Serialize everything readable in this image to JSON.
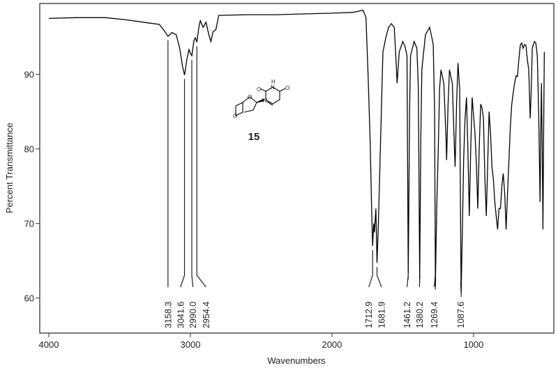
{
  "chart_data": {
    "type": "line",
    "title": "",
    "xlabel": "Wavenumbers",
    "ylabel": "Percent Transmittance",
    "xlim": [
      4064,
      433
    ],
    "ylim": [
      55.3,
      99.5
    ],
    "x_reversed": true,
    "grid": false,
    "xticks": [
      4000,
      3000,
      2000,
      1000
    ],
    "yticks": [
      60,
      70,
      80,
      90
    ],
    "line_color": "#000000",
    "series": [
      {
        "points": [
          [
            4000,
            97.5
          ],
          [
            3800,
            97.6
          ],
          [
            3600,
            97.6
          ],
          [
            3450,
            97.3
          ],
          [
            3300,
            96.9
          ],
          [
            3220,
            96.7
          ],
          [
            3190,
            96.0
          ],
          [
            3158,
            95.1
          ],
          [
            3130,
            95.6
          ],
          [
            3100,
            95.3
          ],
          [
            3075,
            93.5
          ],
          [
            3055,
            91.0
          ],
          [
            3041,
            89.9
          ],
          [
            3025,
            92.0
          ],
          [
            3010,
            93.3
          ],
          [
            3000,
            92.8
          ],
          [
            2990,
            92.5
          ],
          [
            2975,
            94.5
          ],
          [
            2965,
            94.9
          ],
          [
            2954,
            94.3
          ],
          [
            2940,
            96.3
          ],
          [
            2930,
            97.2
          ],
          [
            2910,
            96.3
          ],
          [
            2890,
            97.0
          ],
          [
            2870,
            95.3
          ],
          [
            2855,
            94.4
          ],
          [
            2840,
            95.7
          ],
          [
            2820,
            96.0
          ],
          [
            2800,
            97.9
          ],
          [
            2600,
            98.0
          ],
          [
            2400,
            98.0
          ],
          [
            2200,
            98.1
          ],
          [
            2000,
            98.2
          ],
          [
            1850,
            98.3
          ],
          [
            1780,
            98.6
          ],
          [
            1760,
            97.6
          ],
          [
            1745,
            90.0
          ],
          [
            1730,
            81.0
          ],
          [
            1720,
            72.0
          ],
          [
            1712.9,
            67.0
          ],
          [
            1705,
            70.0
          ],
          [
            1700,
            68.8
          ],
          [
            1690,
            72.0
          ],
          [
            1681.9,
            64.7
          ],
          [
            1672,
            70.0
          ],
          [
            1660,
            78.9
          ],
          [
            1650,
            86.0
          ],
          [
            1640,
            93.0
          ],
          [
            1620,
            94.9
          ],
          [
            1600,
            96.3
          ],
          [
            1580,
            96.8
          ],
          [
            1560,
            96.3
          ],
          [
            1548,
            92.0
          ],
          [
            1540,
            88.8
          ],
          [
            1525,
            93.0
          ],
          [
            1500,
            94.4
          ],
          [
            1485,
            93.8
          ],
          [
            1470,
            92.5
          ],
          [
            1461.2,
            63.1
          ],
          [
            1452,
            85.0
          ],
          [
            1445,
            92.5
          ],
          [
            1420,
            94.4
          ],
          [
            1400,
            93.5
          ],
          [
            1390,
            88.0
          ],
          [
            1380.2,
            62.6
          ],
          [
            1372,
            82.0
          ],
          [
            1365,
            90.6
          ],
          [
            1340,
            95.3
          ],
          [
            1310,
            96.3
          ],
          [
            1295,
            95.0
          ],
          [
            1285,
            94.0
          ],
          [
            1275,
            85.0
          ],
          [
            1269.4,
            61.7
          ],
          [
            1260,
            72.0
          ],
          [
            1250,
            79.4
          ],
          [
            1240,
            88.0
          ],
          [
            1230,
            90.6
          ],
          [
            1210,
            88.8
          ],
          [
            1195,
            82.0
          ],
          [
            1190,
            78.5
          ],
          [
            1180,
            86.0
          ],
          [
            1170,
            90.6
          ],
          [
            1150,
            88.8
          ],
          [
            1135,
            80.0
          ],
          [
            1130,
            77.6
          ],
          [
            1120,
            86.0
          ],
          [
            1110,
            91.5
          ],
          [
            1098,
            88.0
          ],
          [
            1087.6,
            60.7
          ],
          [
            1078,
            70.0
          ],
          [
            1070,
            78.5
          ],
          [
            1060,
            84.0
          ],
          [
            1050,
            86.9
          ],
          [
            1040,
            80.0
          ],
          [
            1030,
            71.0
          ],
          [
            1020,
            80.0
          ],
          [
            1010,
            86.9
          ],
          [
            1000,
            84.5
          ],
          [
            990,
            82.2
          ],
          [
            980,
            78.0
          ],
          [
            970,
            72.0
          ],
          [
            960,
            80.0
          ],
          [
            950,
            86.0
          ],
          [
            940,
            85.5
          ],
          [
            930,
            84.1
          ],
          [
            920,
            76.0
          ],
          [
            910,
            71.0
          ],
          [
            900,
            78.0
          ],
          [
            890,
            85.0
          ],
          [
            880,
            82.0
          ],
          [
            870,
            77.6
          ],
          [
            860,
            76.0
          ],
          [
            850,
            72.9
          ],
          [
            840,
            71.0
          ],
          [
            830,
            69.2
          ],
          [
            820,
            72.0
          ],
          [
            810,
            72.0
          ],
          [
            800,
            75.0
          ],
          [
            790,
            76.7
          ],
          [
            780,
            74.0
          ],
          [
            770,
            69.2
          ],
          [
            760,
            74.0
          ],
          [
            750,
            78.5
          ],
          [
            740,
            83.0
          ],
          [
            730,
            86.0
          ],
          [
            720,
            87.5
          ],
          [
            710,
            88.8
          ],
          [
            700,
            89.8
          ],
          [
            690,
            89.7
          ],
          [
            680,
            92.0
          ],
          [
            670,
            93.9
          ],
          [
            660,
            94.2
          ],
          [
            650,
            93.5
          ],
          [
            640,
            94.0
          ],
          [
            630,
            93.9
          ],
          [
            620,
            92.0
          ],
          [
            610,
            90.6
          ],
          [
            600,
            84.1
          ],
          [
            592,
            88.0
          ],
          [
            585,
            93.5
          ],
          [
            570,
            94.4
          ],
          [
            560,
            94.2
          ],
          [
            550,
            92.5
          ],
          [
            540,
            85.0
          ],
          [
            530,
            72.9
          ],
          [
            525,
            82.0
          ],
          [
            520,
            88.8
          ],
          [
            515,
            80.0
          ],
          [
            510,
            69.2
          ],
          [
            505,
            82.0
          ],
          [
            500,
            93.0
          ]
        ]
      }
    ],
    "peak_labels": [
      {
        "x": 3158.3,
        "label": "3158.3",
        "label_at": 3158.3
      },
      {
        "x": 3041.6,
        "label": "3041.6",
        "label_at": 3070
      },
      {
        "x": 2990.0,
        "label": "2990.0",
        "label_at": 2982
      },
      {
        "x": 2954.4,
        "label": "2954.4",
        "label_at": 2890
      },
      {
        "x": 1712.9,
        "label": "1712.9",
        "label_at": 1740
      },
      {
        "x": 1681.9,
        "label": "1681.9",
        "label_at": 1650
      },
      {
        "x": 1461.2,
        "label": "1461.2",
        "label_at": 1470
      },
      {
        "x": 1380.2,
        "label": "1380.2",
        "label_at": 1382
      },
      {
        "x": 1269.4,
        "label": "1269.4",
        "label_at": 1278
      },
      {
        "x": 1087.6,
        "label": "1087.6",
        "label_at": 1090
      }
    ],
    "annotations": {
      "compound_number": "15",
      "atoms": {
        "o_top": "O",
        "nh": "H",
        "n_top": "N",
        "o_right": "O",
        "n_ring": "N",
        "o_furan": "O",
        "o_oxetane": "O"
      }
    }
  }
}
